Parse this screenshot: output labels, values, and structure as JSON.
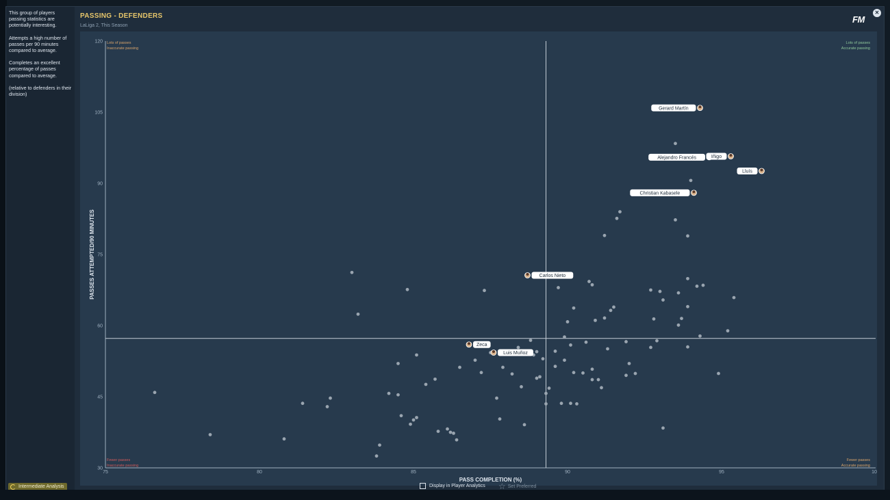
{
  "header": {
    "title": "PASSING - DEFENDERS",
    "subtitle": "LaLiga 2, This Season",
    "logo": "FM",
    "close_icon": "close-icon"
  },
  "sidebar": {
    "paragraphs": [
      "This group of players passing statistics are potentially interesting.",
      "Attempts a high number of passes per 90 minutes compared to average.",
      "Completes an excellent percentage of passes compared to average.",
      "(relative to defenders in their division)"
    ]
  },
  "footer": {
    "analysis_label": "Intermediate Analysis",
    "display_label": "Display in Player Analytics",
    "set_preferred_label": "Set Preferred"
  },
  "colors": {
    "accent_title": "#e7c66b",
    "quad_top_left": "#d9a46b",
    "quad_top_right": "#8fc89a",
    "quad_bottom_left": "#d05a5a",
    "quad_bottom_right": "#d9a46b",
    "dot": "#9aa5b0",
    "dot_red": "#a06a6a"
  },
  "chart_data": {
    "type": "scatter",
    "title": "PASSING - DEFENDERS",
    "xlabel": "PASS COMPLETION (%)",
    "ylabel": "PASSES ATTEMPTED/90 MINUTES",
    "xlim": [
      75,
      100
    ],
    "ylim": [
      30,
      120
    ],
    "xticks": [
      75,
      80,
      85,
      90,
      95,
      100
    ],
    "yticks": [
      30,
      45,
      60,
      75,
      90,
      105,
      120
    ],
    "avg_x": 89.3,
    "avg_y": 57.3,
    "grid": false,
    "quadrant_labels": {
      "top_left": [
        "Lots of passes",
        "Inaccurate passing"
      ],
      "top_right": [
        "Lots of passes",
        "Accurate passing"
      ],
      "bottom_left": [
        "Fewer passes",
        "Inaccurate passing"
      ],
      "bottom_right": [
        "Fewer passes",
        "Accurate passing"
      ]
    },
    "labeled_players": [
      {
        "name": "Gerard Martín",
        "x": 94.3,
        "y": 105.9,
        "side": "left"
      },
      {
        "name": "Alejandro Francés",
        "x": 94.6,
        "y": 95.5,
        "side": "left"
      },
      {
        "name": "Iñigo",
        "x": 95.3,
        "y": 95.7,
        "side": "left"
      },
      {
        "name": "Lluís",
        "x": 96.3,
        "y": 92.6,
        "side": "left"
      },
      {
        "name": "Christian Kabasele",
        "x": 94.1,
        "y": 88.0,
        "side": "left"
      },
      {
        "name": "Carlos Nieto",
        "x": 88.7,
        "y": 70.6,
        "side": "right"
      },
      {
        "name": "Zeca",
        "x": 86.8,
        "y": 56.0,
        "side": "right"
      },
      {
        "name": "Luis Muñoz",
        "x": 87.6,
        "y": 54.3,
        "side": "right"
      }
    ],
    "points": [
      [
        76.6,
        45.9
      ],
      [
        78.4,
        37.0
      ],
      [
        80.8,
        36.1
      ],
      [
        81.4,
        43.6
      ],
      [
        82.2,
        42.9
      ],
      [
        82.3,
        44.7
      ],
      [
        83.0,
        71.2
      ],
      [
        83.2,
        62.4
      ],
      [
        83.8,
        32.5
      ],
      [
        83.9,
        34.8
      ],
      [
        84.2,
        45.7
      ],
      [
        84.5,
        45.4
      ],
      [
        84.5,
        52.0
      ],
      [
        84.6,
        41.0
      ],
      [
        84.8,
        67.6
      ],
      [
        84.9,
        39.2
      ],
      [
        85.0,
        40.1
      ],
      [
        85.1,
        40.6
      ],
      [
        85.1,
        53.8
      ],
      [
        85.4,
        47.6
      ],
      [
        85.7,
        48.7
      ],
      [
        85.8,
        37.7
      ],
      [
        86.1,
        38.2
      ],
      [
        86.2,
        37.5
      ],
      [
        86.3,
        37.3
      ],
      [
        86.4,
        35.9
      ],
      [
        86.5,
        51.2
      ],
      [
        87.0,
        52.7
      ],
      [
        87.2,
        50.1
      ],
      [
        87.3,
        67.4
      ],
      [
        87.5,
        54.3
      ],
      [
        87.7,
        44.7
      ],
      [
        87.9,
        51.2
      ],
      [
        87.8,
        40.3
      ],
      [
        88.2,
        49.8
      ],
      [
        88.4,
        55.4
      ],
      [
        88.5,
        47.1
      ],
      [
        88.6,
        39.1
      ],
      [
        88.8,
        56.9
      ],
      [
        88.9,
        53.8
      ],
      [
        89.0,
        54.5
      ],
      [
        89.0,
        48.9
      ],
      [
        89.1,
        49.2
      ],
      [
        89.2,
        53.0
      ],
      [
        89.4,
        46.8
      ],
      [
        89.3,
        45.7
      ],
      [
        89.3,
        43.5
      ],
      [
        89.6,
        51.4
      ],
      [
        89.6,
        54.6
      ],
      [
        89.7,
        68.0
      ],
      [
        89.8,
        43.6
      ],
      [
        89.9,
        52.7
      ],
      [
        89.9,
        57.6
      ],
      [
        90.0,
        60.8
      ],
      [
        90.1,
        43.6
      ],
      [
        90.1,
        55.9
      ],
      [
        90.2,
        63.7
      ],
      [
        90.2,
        50.1
      ],
      [
        90.3,
        43.5
      ],
      [
        90.5,
        50.0
      ],
      [
        90.6,
        56.5
      ],
      [
        90.7,
        69.3
      ],
      [
        90.8,
        50.8
      ],
      [
        90.8,
        48.6
      ],
      [
        90.8,
        68.6
      ],
      [
        90.9,
        61.1
      ],
      [
        91.0,
        48.6
      ],
      [
        91.1,
        46.9
      ],
      [
        91.2,
        61.6
      ],
      [
        91.2,
        79.0
      ],
      [
        91.3,
        55.1
      ],
      [
        91.4,
        63.2
      ],
      [
        91.5,
        63.9
      ],
      [
        91.6,
        82.6
      ],
      [
        91.7,
        84.0
      ],
      [
        91.9,
        49.5
      ],
      [
        91.9,
        56.6
      ],
      [
        92.0,
        52.0
      ],
      [
        92.2,
        49.9
      ],
      [
        92.7,
        67.5
      ],
      [
        92.7,
        55.4
      ],
      [
        92.8,
        61.4
      ],
      [
        92.9,
        56.8
      ],
      [
        93.0,
        67.2
      ],
      [
        93.1,
        65.4
      ],
      [
        93.1,
        38.4
      ],
      [
        93.5,
        82.3
      ],
      [
        93.5,
        98.4
      ],
      [
        93.6,
        66.9
      ],
      [
        93.6,
        60.1
      ],
      [
        93.7,
        61.5
      ],
      [
        93.9,
        55.5
      ],
      [
        93.9,
        64.0
      ],
      [
        93.9,
        69.9
      ],
      [
        93.9,
        78.9
      ],
      [
        94.2,
        68.3
      ],
      [
        94.3,
        57.8
      ],
      [
        94.4,
        68.5
      ],
      [
        94.9,
        49.9
      ],
      [
        95.2,
        58.9
      ],
      [
        95.4,
        65.9
      ],
      [
        94.0,
        90.6
      ]
    ]
  }
}
